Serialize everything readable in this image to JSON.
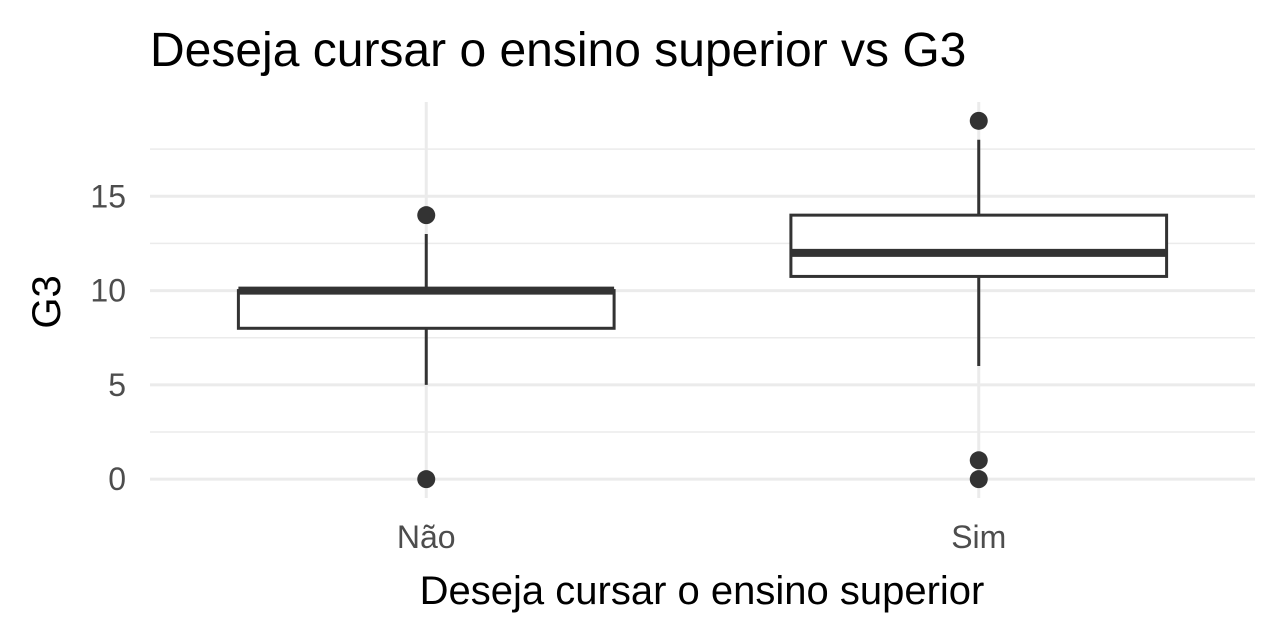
{
  "chart_data": {
    "type": "boxplot",
    "title": "Deseja cursar o ensino superior vs  G3",
    "xlabel": "Deseja cursar o ensino superior",
    "ylabel": "G3",
    "categories": [
      "Não",
      "Sim"
    ],
    "yticks": [
      0,
      5,
      10,
      15
    ],
    "ylim": [
      -1,
      20
    ],
    "grid": true,
    "legend": "none",
    "boxes": [
      {
        "category": "Não",
        "whisker_low": 5,
        "q1": 8,
        "median": 10,
        "q3": 10,
        "whisker_high": 13,
        "outliers": [
          0,
          14
        ]
      },
      {
        "category": "Sim",
        "whisker_low": 6,
        "q1": 10.75,
        "median": 12,
        "q3": 14,
        "whisker_high": 18,
        "outliers": [
          0,
          1,
          19
        ]
      }
    ]
  }
}
